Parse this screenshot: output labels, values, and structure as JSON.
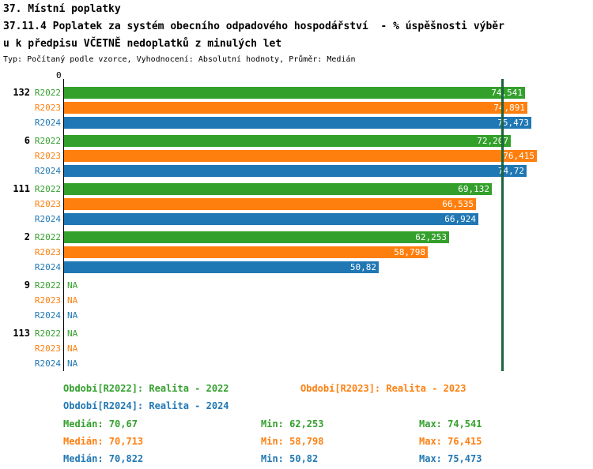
{
  "title": {
    "line1": "37. Místní poplatky",
    "line2": "37.11.4 Poplatek za systém obecního odpadového hospodářství  - % úspěšnosti výběr",
    "line3": "u k předpisu VČETNĚ nedoplatků z minulých let",
    "meta": "Typ: Počítaný podle vzorce, Vyhodnocení: Absolutní hodnoty, Průměr: Medián"
  },
  "colors": {
    "R2022": "#33a02c",
    "R2023": "#ff7f0e",
    "R2024": "#1f77b4"
  },
  "chart_data": {
    "type": "bar",
    "orientation": "horizontal",
    "xlim": [
      0,
      80
    ],
    "axis_zero_label": "0",
    "series": [
      "R2022",
      "R2023",
      "R2024"
    ],
    "groups": [
      {
        "label": "132",
        "bars": [
          {
            "series": "R2022",
            "value": 74.541,
            "display": "74,541"
          },
          {
            "series": "R2023",
            "value": 74.891,
            "display": "74,891"
          },
          {
            "series": "R2024",
            "value": 75.473,
            "display": "75,473"
          }
        ]
      },
      {
        "label": "6",
        "bars": [
          {
            "series": "R2022",
            "value": 72.207,
            "display": "72,207"
          },
          {
            "series": "R2023",
            "value": 76.415,
            "display": "76,415"
          },
          {
            "series": "R2024",
            "value": 74.72,
            "display": "74,72"
          }
        ]
      },
      {
        "label": "111",
        "bars": [
          {
            "series": "R2022",
            "value": 69.132,
            "display": "69,132"
          },
          {
            "series": "R2023",
            "value": 66.535,
            "display": "66,535"
          },
          {
            "series": "R2024",
            "value": 66.924,
            "display": "66,924"
          }
        ]
      },
      {
        "label": "2",
        "bars": [
          {
            "series": "R2022",
            "value": 62.253,
            "display": "62,253"
          },
          {
            "series": "R2023",
            "value": 58.798,
            "display": "58,798"
          },
          {
            "series": "R2024",
            "value": 50.82,
            "display": "50,82"
          }
        ]
      },
      {
        "label": "9",
        "bars": [
          {
            "series": "R2022",
            "value": null,
            "display": "NA"
          },
          {
            "series": "R2023",
            "value": null,
            "display": "NA"
          },
          {
            "series": "R2024",
            "value": null,
            "display": "NA"
          }
        ]
      },
      {
        "label": "113",
        "bars": [
          {
            "series": "R2022",
            "value": null,
            "display": "NA"
          },
          {
            "series": "R2023",
            "value": null,
            "display": "NA"
          },
          {
            "series": "R2024",
            "value": null,
            "display": "NA"
          }
        ]
      }
    ],
    "median_lines": [
      {
        "series": "R2024",
        "value": 70.822,
        "color": "#17527a"
      },
      {
        "series": "R2023",
        "value": 70.713,
        "color": "#b05a00"
      },
      {
        "series": "R2022",
        "value": 70.67,
        "color": "#1e6b1e"
      }
    ]
  },
  "legend": [
    {
      "series": "R2022",
      "label": "Období[R2022]: Realita - 2022"
    },
    {
      "series": "R2023",
      "label": "Období[R2023]: Realita - 2023"
    },
    {
      "series": "R2024",
      "label": "Období[R2024]: Realita - 2024"
    }
  ],
  "stats": [
    {
      "series": "R2022",
      "median": "Medián: 70,67",
      "min": "Min: 62,253",
      "max": "Max: 74,541"
    },
    {
      "series": "R2023",
      "median": "Medián: 70,713",
      "min": "Min: 58,798",
      "max": "Max: 76,415"
    },
    {
      "series": "R2024",
      "median": "Medián: 70,822",
      "min": "Min: 50,82",
      "max": "Max: 75,473"
    }
  ]
}
